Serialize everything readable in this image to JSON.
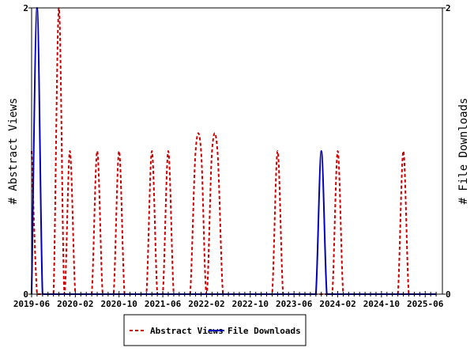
{
  "chart_data": {
    "type": "line",
    "title": "",
    "start_month": "2019-06",
    "month_count": 75,
    "x_tick_labels": [
      "2019-06",
      "2020-02",
      "2020-10",
      "2021-06",
      "2022-02",
      "2022-10",
      "2023-06",
      "2024-02",
      "2024-10",
      "2025-06"
    ],
    "ylabel_left": "# Abstract Views",
    "ylabel_right": "# File Downloads",
    "ylim_left": [
      0,
      2
    ],
    "ylim_right": [
      0,
      2
    ],
    "y_tick_labels_left": [
      "0",
      "2"
    ],
    "y_tick_labels_right": [
      "0",
      "2"
    ],
    "legend_placement": "bottom",
    "series": [
      {
        "name": "Abstract Views",
        "axis": "left",
        "color": "#cc0000",
        "style": "dashed",
        "nonzero": {
          "2019-06": 1,
          "2019-11": 2,
          "2020-01": 1,
          "2020-06": 1,
          "2020-10": 1,
          "2021-04": 1,
          "2021-07": 1,
          "2021-12": 1,
          "2022-01": 1,
          "2022-03": 1,
          "2022-04": 1,
          "2023-03": 1,
          "2024-02": 1,
          "2025-02": 1
        }
      },
      {
        "name": "File Downloads",
        "axis": "right",
        "color": "#0000bb",
        "style": "solid",
        "nonzero": {
          "2019-07": 2,
          "2023-11": 1
        }
      }
    ]
  }
}
